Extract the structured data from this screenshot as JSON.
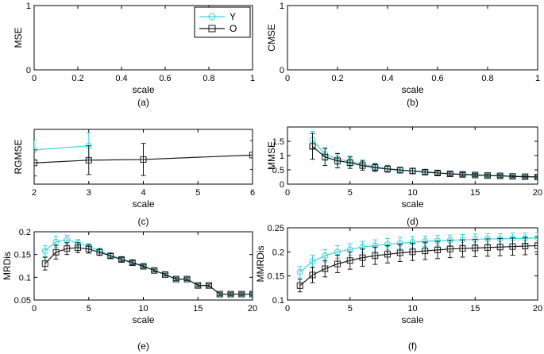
{
  "colors": {
    "Y": "#39d4dc",
    "O": "#1a1a1a",
    "axis": "#000000"
  },
  "legend": [
    {
      "key": "Y",
      "label": "Y",
      "marker": "circle"
    },
    {
      "key": "O",
      "label": "O",
      "marker": "square"
    }
  ],
  "chart_data": [
    {
      "id": "a",
      "type": "line",
      "panel_label": "(a)",
      "xlabel": "scale",
      "ylabel": "MSE",
      "xlim": [
        0,
        1
      ],
      "ylim": [
        0,
        1
      ],
      "xticks": [
        "0",
        "0.2",
        "0.4",
        "0.6",
        "0.8",
        "1"
      ],
      "yticks": [
        "0",
        "1"
      ],
      "legend": "top-right",
      "series": [
        {
          "name": "Y",
          "x": [],
          "values": [],
          "err": []
        },
        {
          "name": "O",
          "x": [],
          "values": [],
          "err": []
        }
      ]
    },
    {
      "id": "b",
      "type": "line",
      "panel_label": "(b)",
      "xlabel": "scale",
      "ylabel": "CMSE",
      "xlim": [
        0,
        1
      ],
      "ylim": [
        0,
        1
      ],
      "xticks": [
        "0",
        "0.2",
        "0.4",
        "0.6",
        "0.8",
        "1"
      ],
      "yticks": [
        "0",
        "1"
      ],
      "series": [
        {
          "name": "Y",
          "x": [],
          "values": [],
          "err": []
        },
        {
          "name": "O",
          "x": [],
          "values": [],
          "err": []
        }
      ]
    },
    {
      "id": "c",
      "type": "line",
      "panel_label": "(c)",
      "xlabel": "scale",
      "ylabel": "RGMSE",
      "xlim": [
        2,
        6
      ],
      "ylim": [
        0.3,
        1.9
      ],
      "xticks": [
        "2",
        "3",
        "4",
        "5",
        "6"
      ],
      "yticks": [],
      "series": [
        {
          "name": "Y",
          "x": [
            2,
            3
          ],
          "values": [
            1.3,
            1.42
          ],
          "err": [
            0.28,
            0.38
          ]
        },
        {
          "name": "O",
          "x": [
            2,
            3,
            4,
            6
          ],
          "values": [
            0.92,
            1.0,
            1.02,
            1.15
          ],
          "err": [
            0.38,
            0.42,
            0.47,
            0.42
          ]
        }
      ]
    },
    {
      "id": "d",
      "type": "line",
      "panel_label": "(d)",
      "xlabel": "scale",
      "ylabel": "MMSE",
      "xlim": [
        0,
        20
      ],
      "ylim": [
        0,
        2
      ],
      "xticks": [
        "0",
        "5",
        "10",
        "15",
        "20"
      ],
      "yticks": [
        "0",
        "0.5",
        "1",
        "1.5"
      ],
      "series": [
        {
          "name": "Y",
          "x": [
            2,
            3,
            4,
            5,
            6,
            7,
            8,
            9,
            10,
            11,
            12,
            13,
            14,
            15,
            16,
            17,
            18,
            19,
            20
          ],
          "values": [
            1.55,
            1.05,
            0.88,
            0.8,
            0.7,
            0.6,
            0.55,
            0.5,
            0.47,
            0.43,
            0.4,
            0.37,
            0.35,
            0.33,
            0.31,
            0.3,
            0.28,
            0.27,
            0.26
          ],
          "err": [
            0.3,
            0.22,
            0.2,
            0.18,
            0.15,
            0.13,
            0.11,
            0.1,
            0.09,
            0.08,
            0.07,
            0.06,
            0.06,
            0.05,
            0.05,
            0.05,
            0.04,
            0.04,
            0.04
          ]
        },
        {
          "name": "O",
          "x": [
            2,
            3,
            4,
            5,
            6,
            7,
            8,
            9,
            10,
            11,
            12,
            13,
            14,
            15,
            16,
            17,
            18,
            19,
            20
          ],
          "values": [
            1.32,
            0.95,
            0.82,
            0.75,
            0.65,
            0.58,
            0.53,
            0.49,
            0.46,
            0.42,
            0.39,
            0.36,
            0.34,
            0.32,
            0.3,
            0.29,
            0.27,
            0.26,
            0.25
          ],
          "err": [
            0.45,
            0.3,
            0.25,
            0.2,
            0.16,
            0.13,
            0.11,
            0.1,
            0.09,
            0.08,
            0.07,
            0.06,
            0.06,
            0.05,
            0.05,
            0.05,
            0.04,
            0.04,
            0.04
          ]
        }
      ]
    },
    {
      "id": "e",
      "type": "line",
      "panel_label": "(e)",
      "xlabel": "scale",
      "ylabel": "MRDis",
      "xlim": [
        0,
        20
      ],
      "ylim": [
        0.05,
        0.2
      ],
      "xticks": [
        "0",
        "5",
        "10",
        "15",
        "20"
      ],
      "yticks": [
        "0.05",
        "0.1",
        "0.15",
        "0.2"
      ],
      "series": [
        {
          "name": "Y",
          "x": [
            1,
            2,
            3,
            4,
            5,
            6,
            7,
            8,
            9,
            10,
            11,
            12,
            13,
            14,
            15,
            16,
            17,
            18,
            19,
            20
          ],
          "values": [
            0.158,
            0.178,
            0.182,
            0.175,
            0.168,
            0.158,
            0.148,
            0.14,
            0.133,
            0.125,
            0.115,
            0.106,
            0.096,
            0.096,
            0.082,
            0.082,
            0.063,
            0.063,
            0.063,
            0.063
          ],
          "err": [
            0.012,
            0.012,
            0.01,
            0.008,
            0.006,
            0.005,
            0.004,
            0.003,
            0.003,
            0.003,
            0.003,
            0.003,
            0.003,
            0.003,
            0.003,
            0.003,
            0.003,
            0.003,
            0.003,
            0.003
          ]
        },
        {
          "name": "O",
          "x": [
            1,
            2,
            3,
            4,
            5,
            6,
            7,
            8,
            9,
            10,
            11,
            12,
            13,
            14,
            15,
            16,
            17,
            18,
            19,
            20
          ],
          "values": [
            0.13,
            0.155,
            0.163,
            0.165,
            0.162,
            0.155,
            0.147,
            0.139,
            0.132,
            0.124,
            0.115,
            0.106,
            0.096,
            0.096,
            0.082,
            0.082,
            0.063,
            0.063,
            0.063,
            0.063
          ],
          "err": [
            0.014,
            0.015,
            0.013,
            0.011,
            0.009,
            0.007,
            0.005,
            0.004,
            0.004,
            0.003,
            0.003,
            0.003,
            0.003,
            0.003,
            0.003,
            0.003,
            0.003,
            0.003,
            0.003,
            0.003
          ]
        }
      ]
    },
    {
      "id": "f",
      "type": "line",
      "panel_label": "(f)",
      "xlabel": "scale",
      "ylabel": "MMRDis",
      "xlim": [
        0,
        20
      ],
      "ylim": [
        0.1,
        0.25
      ],
      "xticks": [
        "0",
        "5",
        "10",
        "15",
        "20"
      ],
      "yticks": [
        "0.1",
        "0.15",
        "0.2",
        "0.25"
      ],
      "series": [
        {
          "name": "Y",
          "x": [
            1,
            2,
            3,
            4,
            5,
            6,
            7,
            8,
            9,
            10,
            11,
            12,
            13,
            14,
            15,
            16,
            17,
            18,
            19,
            20
          ],
          "values": [
            0.158,
            0.18,
            0.192,
            0.2,
            0.205,
            0.21,
            0.213,
            0.216,
            0.218,
            0.22,
            0.222,
            0.223,
            0.224,
            0.225,
            0.226,
            0.227,
            0.227,
            0.228,
            0.228,
            0.229
          ],
          "err": [
            0.012,
            0.013,
            0.013,
            0.013,
            0.012,
            0.012,
            0.012,
            0.012,
            0.012,
            0.012,
            0.011,
            0.011,
            0.011,
            0.011,
            0.011,
            0.011,
            0.011,
            0.011,
            0.011,
            0.011
          ]
        },
        {
          "name": "O",
          "x": [
            1,
            2,
            3,
            4,
            5,
            6,
            7,
            8,
            9,
            10,
            11,
            12,
            13,
            14,
            15,
            16,
            17,
            18,
            19,
            20
          ],
          "values": [
            0.13,
            0.152,
            0.165,
            0.175,
            0.182,
            0.188,
            0.192,
            0.195,
            0.198,
            0.2,
            0.202,
            0.204,
            0.206,
            0.207,
            0.208,
            0.209,
            0.21,
            0.211,
            0.212,
            0.213
          ],
          "err": [
            0.013,
            0.016,
            0.017,
            0.018,
            0.018,
            0.018,
            0.018,
            0.018,
            0.018,
            0.018,
            0.018,
            0.018,
            0.018,
            0.018,
            0.018,
            0.018,
            0.018,
            0.018,
            0.018,
            0.018
          ]
        }
      ]
    }
  ]
}
